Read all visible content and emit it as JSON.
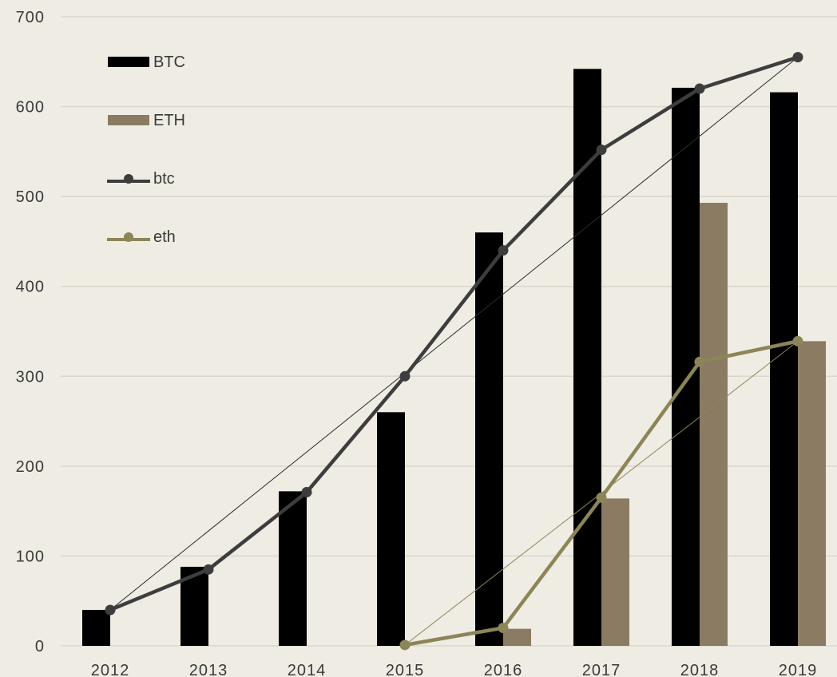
{
  "chart_data": {
    "type": "bar",
    "categories": [
      "2012",
      "2013",
      "2014",
      "2015",
      "2016",
      "2017",
      "2018",
      "2019"
    ],
    "ylim": [
      0,
      700
    ],
    "yticks": [
      0,
      100,
      200,
      300,
      400,
      500,
      600,
      700
    ],
    "grid": true,
    "legend_position": "top-left",
    "colors": {
      "background": "#efece4",
      "grid": "#d9d6cd",
      "BTC": "#000000",
      "ETH": "#8a7b62",
      "btc": "#3d3d3d",
      "eth": "#8c8558"
    },
    "series": [
      {
        "name": "BTC",
        "type": "bar",
        "values": [
          40,
          88,
          172,
          260,
          460,
          642,
          621,
          616
        ]
      },
      {
        "name": "ETH",
        "type": "bar",
        "values": [
          null,
          null,
          null,
          null,
          19,
          164,
          493,
          339
        ]
      },
      {
        "name": "btc",
        "type": "line",
        "values": [
          40,
          85,
          171,
          300,
          440,
          552,
          620,
          655
        ]
      },
      {
        "name": "eth",
        "type": "line",
        "values": [
          null,
          null,
          null,
          1,
          20,
          165,
          316,
          339
        ]
      }
    ],
    "trendlines": [
      {
        "series": "btc",
        "from": [
          "2012",
          40
        ],
        "to": [
          "2019",
          655
        ]
      },
      {
        "series": "eth",
        "from": [
          "2015",
          1
        ],
        "to": [
          "2019",
          339
        ]
      }
    ]
  }
}
